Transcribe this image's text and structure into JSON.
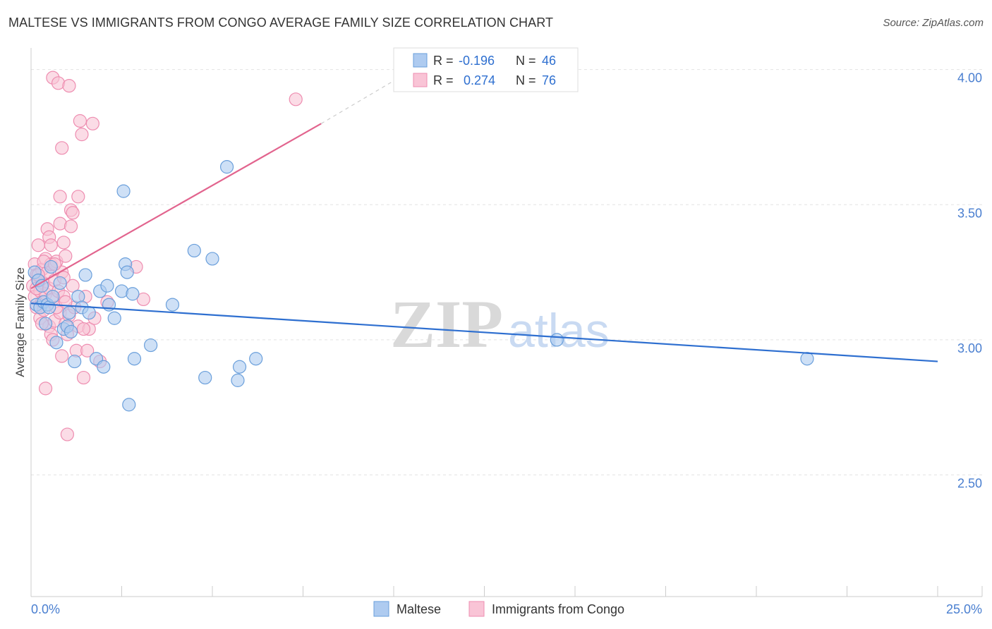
{
  "header": {
    "title": "MALTESE VS IMMIGRANTS FROM CONGO AVERAGE FAMILY SIZE CORRELATION CHART",
    "source": "Source: ZipAtlas.com"
  },
  "watermark": {
    "part1": "ZIP",
    "part2": "atlas"
  },
  "colors": {
    "maltese_fill": "#aecbf0",
    "maltese_stroke": "#6a9fdb",
    "maltese_line": "#2e6fd0",
    "congo_fill": "#f9c4d6",
    "congo_stroke": "#ee8db0",
    "congo_line": "#e2648e",
    "axis_value_color": "#4a7fd0",
    "grid": "#e4e4e4"
  },
  "stats_legend": {
    "rows": [
      {
        "r_label": "R =",
        "r_value": "-0.196",
        "n_label": "N =",
        "n_value": "46"
      },
      {
        "r_label": "R =",
        "r_value": "0.274",
        "n_label": "N =",
        "n_value": "76"
      }
    ]
  },
  "chart_data": {
    "type": "scatter",
    "title": "MALTESE VS IMMIGRANTS FROM CONGO AVERAGE FAMILY SIZE CORRELATION CHART",
    "xlabel": "",
    "ylabel": "Average Family Size",
    "xlim": [
      0,
      25
    ],
    "ylim": [
      2.05,
      4.08
    ],
    "x_tick_labels": [
      "0.0%",
      "25.0%"
    ],
    "y_ticks": [
      2.5,
      3.0,
      3.5,
      4.0
    ],
    "y_tick_labels": [
      "2.50",
      "3.00",
      "3.50",
      "4.00"
    ],
    "legend_position": "bottom-center",
    "series": [
      {
        "name": "Maltese",
        "r": -0.196,
        "n": 46,
        "trend": {
          "x0": 0,
          "y0": 3.135,
          "x1": 25,
          "y1": 2.92
        },
        "points": [
          [
            0.1,
            3.25
          ],
          [
            0.15,
            3.13
          ],
          [
            0.2,
            3.22
          ],
          [
            0.25,
            3.12
          ],
          [
            0.3,
            3.2
          ],
          [
            0.35,
            3.14
          ],
          [
            0.45,
            3.13
          ],
          [
            0.5,
            3.12
          ],
          [
            0.6,
            3.16
          ],
          [
            0.7,
            2.99
          ],
          [
            0.9,
            3.04
          ],
          [
            1.0,
            3.05
          ],
          [
            1.1,
            3.03
          ],
          [
            1.2,
            2.92
          ],
          [
            1.3,
            3.16
          ],
          [
            1.4,
            3.12
          ],
          [
            1.5,
            3.24
          ],
          [
            1.6,
            3.1
          ],
          [
            1.8,
            2.93
          ],
          [
            1.9,
            3.18
          ],
          [
            2.0,
            2.9
          ],
          [
            2.1,
            3.2
          ],
          [
            2.15,
            3.13
          ],
          [
            2.3,
            3.08
          ],
          [
            2.5,
            3.18
          ],
          [
            2.55,
            3.55
          ],
          [
            2.6,
            3.28
          ],
          [
            2.65,
            3.25
          ],
          [
            2.7,
            2.76
          ],
          [
            2.8,
            3.17
          ],
          [
            2.85,
            2.93
          ],
          [
            3.3,
            2.98
          ],
          [
            3.9,
            3.13
          ],
          [
            4.5,
            3.33
          ],
          [
            4.8,
            2.86
          ],
          [
            5.0,
            3.3
          ],
          [
            5.4,
            3.64
          ],
          [
            5.7,
            2.85
          ],
          [
            5.75,
            2.9
          ],
          [
            6.2,
            2.93
          ],
          [
            14.5,
            3.0
          ],
          [
            21.4,
            2.93
          ],
          [
            0.4,
            3.06
          ],
          [
            0.8,
            3.21
          ],
          [
            1.05,
            3.1
          ],
          [
            0.55,
            3.27
          ]
        ]
      },
      {
        "name": "Immigrants from Congo",
        "r": 0.274,
        "n": 76,
        "trend": {
          "x0": 0,
          "y0": 3.19,
          "x1": 8.0,
          "y1": 3.8
        },
        "trend_dashed": {
          "x0": 8.0,
          "y0": 3.8,
          "x1": 10.4,
          "y1": 3.99
        },
        "points": [
          [
            0.05,
            3.2
          ],
          [
            0.1,
            3.16
          ],
          [
            0.1,
            3.28
          ],
          [
            0.15,
            3.24
          ],
          [
            0.15,
            3.12
          ],
          [
            0.2,
            3.35
          ],
          [
            0.2,
            3.22
          ],
          [
            0.25,
            3.18
          ],
          [
            0.25,
            3.08
          ],
          [
            0.3,
            3.26
          ],
          [
            0.3,
            3.14
          ],
          [
            0.35,
            3.21
          ],
          [
            0.35,
            3.11
          ],
          [
            0.4,
            3.3
          ],
          [
            0.4,
            3.17
          ],
          [
            0.45,
            3.41
          ],
          [
            0.45,
            3.25
          ],
          [
            0.5,
            3.38
          ],
          [
            0.5,
            3.19
          ],
          [
            0.5,
            3.05
          ],
          [
            0.55,
            3.28
          ],
          [
            0.55,
            3.02
          ],
          [
            0.6,
            3.97
          ],
          [
            0.6,
            3.15
          ],
          [
            0.65,
            3.22
          ],
          [
            0.65,
            3.07
          ],
          [
            0.7,
            3.29
          ],
          [
            0.75,
            3.95
          ],
          [
            0.75,
            3.18
          ],
          [
            0.8,
            3.53
          ],
          [
            0.8,
            3.43
          ],
          [
            0.8,
            3.1
          ],
          [
            0.85,
            3.71
          ],
          [
            0.85,
            3.25
          ],
          [
            0.85,
            2.94
          ],
          [
            0.9,
            3.36
          ],
          [
            0.9,
            3.16
          ],
          [
            0.95,
            3.31
          ],
          [
            0.95,
            3.06
          ],
          [
            1.0,
            2.65
          ],
          [
            1.0,
            3.02
          ],
          [
            1.05,
            3.94
          ],
          [
            1.05,
            3.09
          ],
          [
            1.1,
            3.48
          ],
          [
            1.1,
            3.42
          ],
          [
            1.15,
            3.47
          ],
          [
            1.2,
            3.12
          ],
          [
            1.25,
            2.96
          ],
          [
            1.3,
            3.53
          ],
          [
            1.3,
            3.05
          ],
          [
            1.35,
            3.81
          ],
          [
            1.4,
            3.76
          ],
          [
            1.45,
            2.86
          ],
          [
            1.5,
            3.16
          ],
          [
            1.55,
            2.96
          ],
          [
            1.6,
            3.04
          ],
          [
            1.7,
            3.8
          ],
          [
            1.75,
            3.08
          ],
          [
            1.9,
            2.92
          ],
          [
            2.1,
            3.14
          ],
          [
            2.9,
            3.27
          ],
          [
            3.1,
            3.15
          ],
          [
            7.3,
            3.89
          ],
          [
            0.4,
            2.82
          ],
          [
            0.3,
            3.06
          ],
          [
            0.6,
            3.0
          ],
          [
            1.15,
            3.2
          ],
          [
            0.2,
            3.24
          ],
          [
            0.7,
            3.12
          ],
          [
            0.35,
            3.29
          ],
          [
            0.9,
            3.23
          ],
          [
            1.45,
            3.04
          ],
          [
            0.55,
            3.35
          ],
          [
            0.15,
            3.19
          ],
          [
            0.95,
            3.14
          ],
          [
            0.65,
            3.28
          ]
        ]
      }
    ]
  }
}
